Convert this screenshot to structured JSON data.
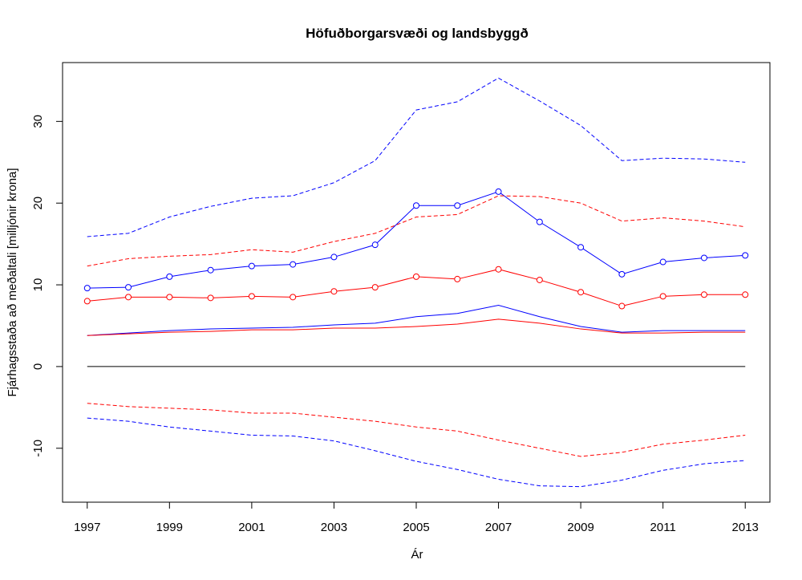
{
  "chart_data": {
    "type": "line",
    "title": "Höfuðborgarsvæði og landsbyggð",
    "xlabel": "Ár",
    "ylabel": "Fjárhagsstaða að meðaltali [milljónir krona]",
    "xlim": [
      1996.4,
      2013.6
    ],
    "ylim": [
      -16.6,
      37.2
    ],
    "x": [
      1997,
      1998,
      1999,
      2000,
      2001,
      2002,
      2003,
      2004,
      2005,
      2006,
      2007,
      2008,
      2009,
      2010,
      2011,
      2012,
      2013
    ],
    "x_ticks": [
      "1997",
      "1999",
      "2001",
      "2003",
      "2005",
      "2007",
      "2009",
      "2011",
      "2013"
    ],
    "y_ticks": [
      "-10",
      "0",
      "10",
      "20",
      "30"
    ],
    "grid": false,
    "legend": "none",
    "zero_line": 0,
    "colors": {
      "blue": "#0000ff",
      "red": "#ff0000",
      "black": "#000000"
    },
    "series": [
      {
        "color": "#0000ff",
        "style": "dashed",
        "values": [
          15.9,
          16.3,
          18.3,
          19.6,
          20.6,
          20.9,
          22.5,
          25.2,
          31.4,
          32.4,
          35.3,
          32.5,
          29.5,
          25.2,
          25.5,
          25.4,
          25.0
        ]
      },
      {
        "color": "#0000ff",
        "style": "solid-markers",
        "values": [
          9.6,
          9.7,
          11.0,
          11.8,
          12.3,
          12.5,
          13.4,
          14.9,
          19.7,
          19.7,
          21.4,
          17.7,
          14.6,
          11.3,
          12.8,
          13.3,
          13.6
        ]
      },
      {
        "color": "#0000ff",
        "style": "solid",
        "values": [
          3.8,
          4.1,
          4.4,
          4.6,
          4.7,
          4.8,
          5.1,
          5.3,
          6.1,
          6.5,
          7.5,
          6.1,
          4.9,
          4.2,
          4.4,
          4.4,
          4.4
        ]
      },
      {
        "color": "#0000ff",
        "style": "dashed",
        "values": [
          -6.3,
          -6.7,
          -7.4,
          -7.9,
          -8.4,
          -8.5,
          -9.1,
          -10.3,
          -11.6,
          -12.6,
          -13.8,
          -14.6,
          -14.7,
          -13.9,
          -12.7,
          -11.9,
          -11.5
        ]
      },
      {
        "color": "#ff0000",
        "style": "dashed",
        "values": [
          12.3,
          13.2,
          13.5,
          13.7,
          14.3,
          14.0,
          15.3,
          16.3,
          18.3,
          18.6,
          20.9,
          20.8,
          20.0,
          17.8,
          18.2,
          17.8,
          17.1
        ]
      },
      {
        "color": "#ff0000",
        "style": "solid-markers",
        "values": [
          8.0,
          8.5,
          8.5,
          8.4,
          8.6,
          8.5,
          9.2,
          9.7,
          11.0,
          10.7,
          11.9,
          10.6,
          9.1,
          7.4,
          8.6,
          8.8,
          8.8
        ]
      },
      {
        "color": "#ff0000",
        "style": "solid",
        "values": [
          3.8,
          4.0,
          4.2,
          4.3,
          4.5,
          4.5,
          4.7,
          4.7,
          4.9,
          5.2,
          5.8,
          5.3,
          4.6,
          4.1,
          4.1,
          4.2,
          4.2
        ]
      },
      {
        "color": "#ff0000",
        "style": "dashed",
        "values": [
          -4.5,
          -4.9,
          -5.1,
          -5.3,
          -5.7,
          -5.7,
          -6.2,
          -6.7,
          -7.4,
          -7.9,
          -9.0,
          -10.0,
          -11.0,
          -10.5,
          -9.5,
          -9.0,
          -8.4
        ]
      }
    ]
  }
}
